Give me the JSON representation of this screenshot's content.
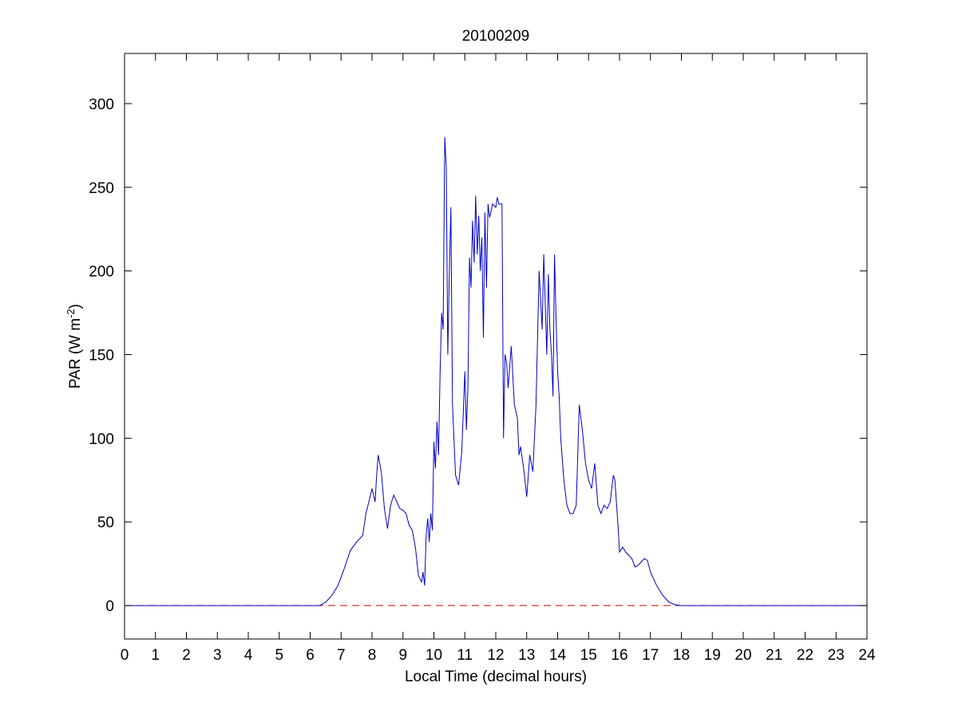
{
  "chart_data": {
    "type": "line",
    "title": "20100209",
    "xlabel": "Local Time (decimal hours)",
    "ylabel_main": "PAR (W m",
    "ylabel_exp": "-2",
    "ylabel_close": ")",
    "xlim": [
      0,
      24
    ],
    "ylim": [
      -20,
      330
    ],
    "xticks": [
      0,
      1,
      2,
      3,
      4,
      5,
      6,
      7,
      8,
      9,
      10,
      11,
      12,
      13,
      14,
      15,
      16,
      17,
      18,
      19,
      20,
      21,
      22,
      23,
      24
    ],
    "yticks": [
      0,
      50,
      100,
      150,
      200,
      250,
      300
    ],
    "grid": false,
    "legend": "none",
    "colors": {
      "series": "#0000c8",
      "zero_line": "#c00000"
    },
    "reference_line": {
      "y": 0,
      "style": "dashed"
    },
    "series": [
      {
        "x": [
          0,
          6.3,
          6.5,
          6.7,
          6.9,
          7.1,
          7.3,
          7.5,
          7.7,
          7.8,
          7.9,
          8.0,
          8.05,
          8.1,
          8.15,
          8.2,
          8.3,
          8.4,
          8.5,
          8.6,
          8.7,
          8.8,
          8.9,
          9.0,
          9.1,
          9.2,
          9.3,
          9.4,
          9.5,
          9.6,
          9.65,
          9.7,
          9.75,
          9.8,
          9.85,
          9.9,
          9.95,
          10.0,
          10.05,
          10.1,
          10.15,
          10.2,
          10.25,
          10.3,
          10.35,
          10.4,
          10.45,
          10.5,
          10.55,
          10.6,
          10.7,
          10.8,
          10.9,
          11.0,
          11.05,
          11.1,
          11.15,
          11.2,
          11.25,
          11.3,
          11.35,
          11.4,
          11.45,
          11.5,
          11.55,
          11.6,
          11.65,
          11.7,
          11.75,
          11.8,
          11.9,
          12.0,
          12.05,
          12.1,
          12.2,
          12.25,
          12.3,
          12.35,
          12.4,
          12.5,
          12.6,
          12.7,
          12.75,
          12.8,
          12.9,
          13.0,
          13.1,
          13.2,
          13.3,
          13.4,
          13.5,
          13.55,
          13.6,
          13.65,
          13.7,
          13.75,
          13.8,
          13.85,
          13.9,
          13.95,
          14.0,
          14.05,
          14.1,
          14.2,
          14.3,
          14.4,
          14.5,
          14.6,
          14.65,
          14.7,
          14.8,
          14.9,
          15.0,
          15.1,
          15.2,
          15.3,
          15.4,
          15.5,
          15.6,
          15.7,
          15.75,
          15.8,
          15.85,
          15.9,
          15.95,
          16.0,
          16.1,
          16.2,
          16.3,
          16.4,
          16.5,
          16.6,
          16.7,
          16.8,
          16.9,
          17.0,
          17.2,
          17.4,
          17.6,
          17.8,
          18.0,
          24
        ],
        "y": [
          0,
          0,
          2,
          6,
          12,
          22,
          33,
          38,
          42,
          55,
          62,
          70,
          66,
          62,
          78,
          90,
          80,
          58,
          46,
          60,
          66,
          62,
          58,
          57,
          55,
          48,
          45,
          35,
          18,
          14,
          20,
          12,
          42,
          52,
          38,
          55,
          45,
          98,
          82,
          110,
          90,
          140,
          175,
          165,
          280,
          262,
          150,
          200,
          238,
          120,
          78,
          72,
          92,
          140,
          105,
          130,
          208,
          190,
          230,
          205,
          245,
          210,
          233,
          200,
          220,
          160,
          235,
          190,
          240,
          232,
          240,
          238,
          244,
          240,
          240,
          100,
          150,
          145,
          130,
          155,
          120,
          112,
          90,
          95,
          82,
          65,
          90,
          80,
          120,
          200,
          165,
          210,
          180,
          150,
          198,
          165,
          150,
          125,
          210,
          170,
          140,
          125,
          100,
          75,
          60,
          55,
          55,
          60,
          90,
          120,
          105,
          85,
          75,
          70,
          85,
          60,
          55,
          60,
          58,
          62,
          70,
          78,
          75,
          62,
          48,
          32,
          35,
          32,
          30,
          28,
          23,
          24,
          26,
          28,
          27,
          20,
          12,
          6,
          2,
          0.5,
          0,
          0
        ]
      }
    ]
  }
}
